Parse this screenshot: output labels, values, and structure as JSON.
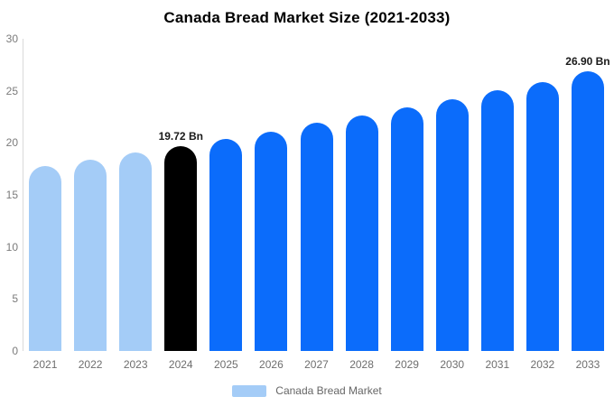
{
  "chart_data": {
    "type": "bar",
    "title": "Canada Bread Market Size (2021-2033)",
    "categories": [
      "2021",
      "2022",
      "2023",
      "2024",
      "2025",
      "2026",
      "2027",
      "2028",
      "2029",
      "2030",
      "2031",
      "2032",
      "2033"
    ],
    "values": [
      17.8,
      18.4,
      19.1,
      19.72,
      20.4,
      21.1,
      21.9,
      22.6,
      23.4,
      24.2,
      25.1,
      25.8,
      26.9
    ],
    "point_colors": [
      "#a4ccf7",
      "#a4ccf7",
      "#a4ccf7",
      "#000000",
      "#0b6cfb",
      "#0b6cfb",
      "#0b6cfb",
      "#0b6cfb",
      "#0b6cfb",
      "#0b6cfb",
      "#0b6cfb",
      "#0b6cfb",
      "#0b6cfb"
    ],
    "annotations": [
      {
        "index": 3,
        "text": "19.72 Bn"
      },
      {
        "index": 12,
        "text": "26.90 Bn"
      }
    ],
    "xlabel": "",
    "ylabel": "",
    "ylim": [
      0,
      30
    ],
    "yticks": [
      0,
      5,
      10,
      15,
      20,
      25,
      30
    ],
    "grid": false,
    "legend_position": "bottom",
    "legend": {
      "label": "Canada Bread Market",
      "swatch_color": "#a4ccf7"
    },
    "colors": {
      "light_blue": "#a4ccf7",
      "blue": "#0b6cfb",
      "highlight_black": "#000000",
      "axis_line": "#d9d9d9",
      "tick_text": "#7b7b7b",
      "legend_text": "#666666",
      "background": "#ffffff"
    }
  }
}
